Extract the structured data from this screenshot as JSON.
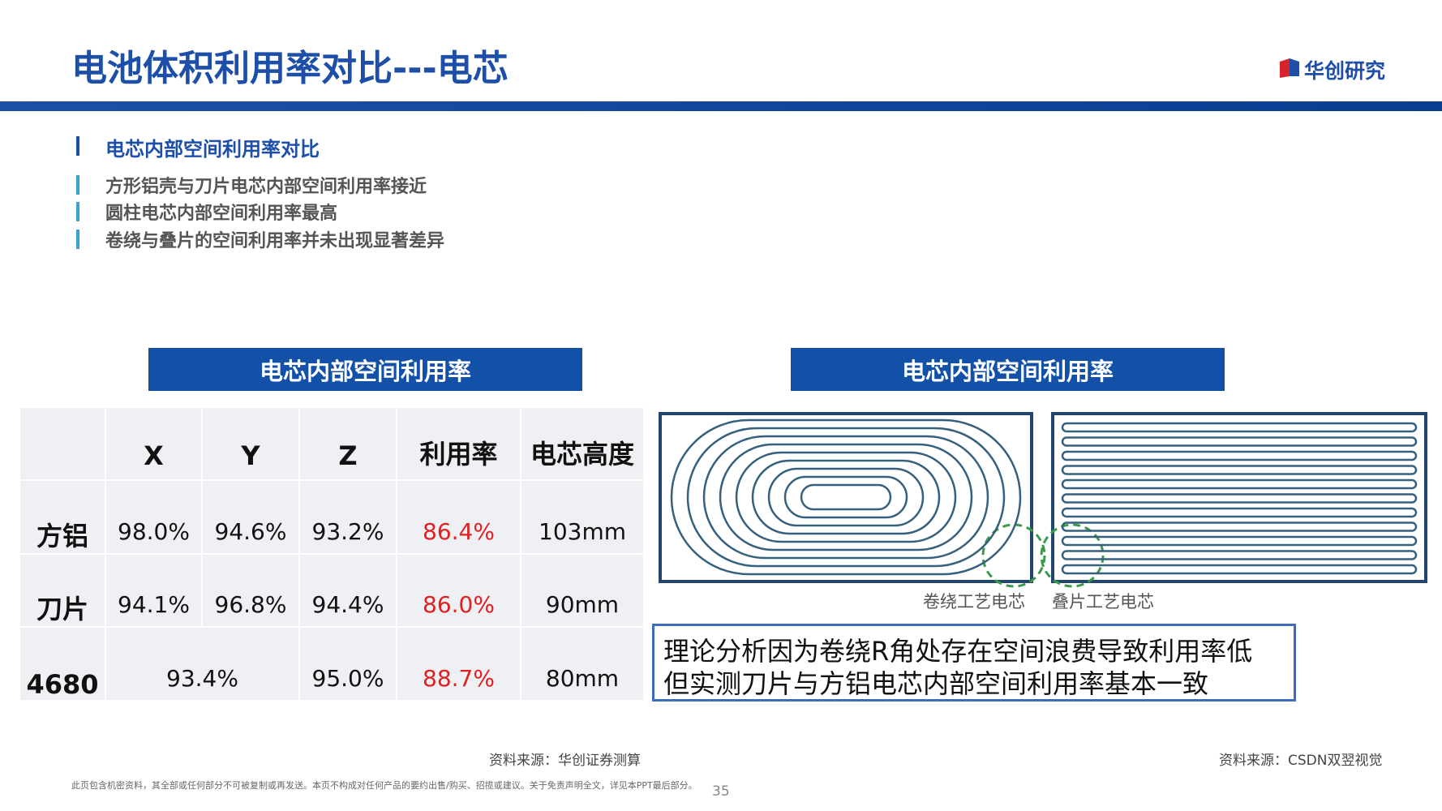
{
  "header": {
    "title": "电池体积利用率对比---电芯",
    "logo": "华创研究"
  },
  "bullets": [
    "电芯内部空间利用率对比",
    "方形铝壳与刀片电芯内部空间利用率接近",
    "圆柱电芯内部空间利用率最高",
    "卷绕与叠片的空间利用率并未出现显著差异"
  ],
  "left_panel": {
    "heading": "电芯内部空间利用率",
    "table": {
      "columns": [
        "X",
        "Y",
        "Z",
        "利用率",
        "电芯高度"
      ],
      "rows": [
        [
          "方铝",
          "98.0%",
          "94.6%",
          "93.2%",
          "86.4%",
          "103mm"
        ],
        [
          "刀片",
          "94.1%",
          "96.8%",
          "94.4%",
          "86.0%",
          "90mm"
        ],
        [
          "4680",
          "93.4%",
          "95.0%",
          "88.7%",
          "80mm"
        ]
      ]
    },
    "source": "资料来源：华创证券测算"
  },
  "right_panel": {
    "heading": "电芯内部空间利用率",
    "labels": [
      "卷绕工艺电芯",
      "叠片工艺电芯"
    ],
    "note": [
      "理论分析因为卷绕R角处存在空间浪费导致利用率低",
      "但实测刀片与方铝电芯内部空间利用率基本一致"
    ],
    "source": "资料来源：CSDN双翌视觉"
  },
  "footer": {
    "disclaimer": "此页包含机密资料，其全部或任何部分不可被复制或再发送。本页不构成对任何产品的要约出售/购买、招揽或建议。关于免责声明全文，详见本PPT最后部分。",
    "page": "35"
  }
}
